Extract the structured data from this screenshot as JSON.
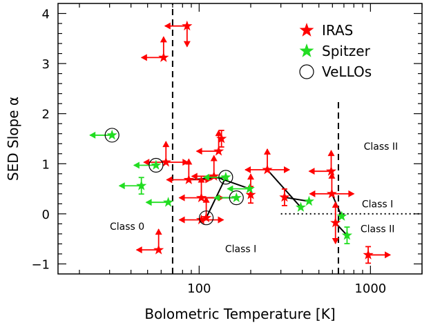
{
  "chart_data": {
    "type": "scatter",
    "xlabel": "Bolometric Temperature  [K]",
    "ylabel": "SED Slope   α",
    "xscale": "log",
    "xlim": [
      15,
      2000
    ],
    "ylim": [
      -1.2,
      4.2
    ],
    "x_ticks": [
      {
        "v": 100,
        "label": "100"
      },
      {
        "v": 1000,
        "label": "1000"
      }
    ],
    "y_ticks": [
      {
        "v": -1,
        "label": "−1"
      },
      {
        "v": 0,
        "label": "0"
      },
      {
        "v": 1,
        "label": "1"
      },
      {
        "v": 2,
        "label": "2"
      },
      {
        "v": 3,
        "label": "3"
      },
      {
        "v": 4,
        "label": "4"
      }
    ],
    "legend": {
      "placement": "top-right",
      "entries": [
        {
          "label": "IRAS",
          "marker": "star",
          "color": "#ff0000"
        },
        {
          "label": "Spitzer",
          "marker": "star",
          "color": "#22dd22"
        },
        {
          "label": "VeLLOs",
          "marker": "open-circle",
          "color": "#000000"
        }
      ]
    },
    "class_labels": [
      {
        "text": "Class 0",
        "x": 38,
        "y": -0.25
      },
      {
        "text": "Class I",
        "x": 175,
        "y": -0.7
      },
      {
        "text": "Class II",
        "x": 1150,
        "y": 1.35
      },
      {
        "text": "Class I",
        "x": 1100,
        "y": 0.2
      },
      {
        "text": "Class II",
        "x": 1100,
        "y": -0.3
      }
    ],
    "boundaries": [
      {
        "style": "dashed",
        "orientation": "vertical",
        "x": 70,
        "y": [
          -1.2,
          4.2
        ]
      },
      {
        "style": "dashed",
        "orientation": "vertical",
        "x": 650,
        "y": [
          -1.2,
          2.3
        ]
      },
      {
        "style": "dotted",
        "orientation": "horizontal",
        "y": 0,
        "x": [
          300,
          2000
        ]
      }
    ],
    "series": [
      {
        "name": "IRAS",
        "color": "#ff0000",
        "points": [
          {
            "x": 85,
            "y": 3.75,
            "arrows": [
              "down",
              "left"
            ]
          },
          {
            "x": 62,
            "y": 3.12,
            "arrows": [
              "up",
              "left"
            ]
          },
          {
            "x": 58,
            "y": -0.72,
            "arrows": [
              "up",
              "left"
            ]
          },
          {
            "x": 64,
            "y": 1.03,
            "arrows": [
              "up",
              "left",
              "right"
            ]
          },
          {
            "x": 87,
            "y": 0.68,
            "arrows": [
              "up",
              "left",
              "right"
            ]
          },
          {
            "x": 103,
            "y": 0.32,
            "arrows": [
              "up",
              "left",
              "right"
            ]
          },
          {
            "x": 103,
            "y": -0.12,
            "arrows": [
              "left",
              "right"
            ]
          },
          {
            "x": 110,
            "y": -0.08,
            "arrows": [
              "up"
            ]
          },
          {
            "x": 130,
            "y": 1.25,
            "arrows": [
              "up",
              "left"
            ]
          },
          {
            "x": 135,
            "y": 1.5,
            "errorbar": true
          },
          {
            "x": 122,
            "y": 0.75,
            "arrows": [
              "up",
              "left"
            ]
          },
          {
            "x": 200,
            "y": 0.38,
            "errorbar": true,
            "arrows": [
              "up"
            ]
          },
          {
            "x": 250,
            "y": 0.88,
            "arrows": [
              "up",
              "left",
              "right"
            ]
          },
          {
            "x": 315,
            "y": 0.33,
            "errorbar": true
          },
          {
            "x": 590,
            "y": 0.85,
            "arrows": [
              "up",
              "left"
            ]
          },
          {
            "x": 595,
            "y": 0.4,
            "arrows": [
              "up",
              "left",
              "right"
            ]
          },
          {
            "x": 625,
            "y": -0.18,
            "arrows": [
              "up",
              "down"
            ]
          },
          {
            "x": 970,
            "y": -0.82,
            "errorbar": true,
            "arrows": [
              "right"
            ]
          }
        ]
      },
      {
        "name": "Spitzer",
        "color": "#22dd22",
        "points": [
          {
            "x": 31,
            "y": 1.57,
            "arrows": [
              "left"
            ],
            "vello": true
          },
          {
            "x": 56,
            "y": 0.97,
            "arrows": [
              "left"
            ],
            "vello": true
          },
          {
            "x": 46,
            "y": 0.56,
            "errorbar": true,
            "arrows": [
              "left"
            ]
          },
          {
            "x": 66,
            "y": 0.23,
            "arrows": [
              "left"
            ]
          },
          {
            "x": 143,
            "y": 0.73,
            "arrows": [
              "left"
            ],
            "vello": true
          },
          {
            "x": 165,
            "y": 0.32,
            "arrows": [
              "left"
            ],
            "vello": true
          },
          {
            "x": 197,
            "y": 0.5,
            "arrows": [
              "left"
            ]
          },
          {
            "x": 392,
            "y": 0.13
          },
          {
            "x": 438,
            "y": 0.25
          },
          {
            "x": 680,
            "y": -0.05
          },
          {
            "x": 730,
            "y": -0.43,
            "errorbar": true
          }
        ]
      },
      {
        "name": "VeLLOs",
        "color": "#000000",
        "points": [
          {
            "x": 110,
            "y": -0.08
          }
        ]
      }
    ],
    "connections": [
      {
        "from": [
          87,
          0.68
        ],
        "to": [
          143,
          0.73
        ]
      },
      {
        "from": [
          110,
          -0.08
        ],
        "to": [
          143,
          0.73
        ]
      },
      {
        "from": [
          103,
          0.32
        ],
        "to": [
          165,
          0.32
        ]
      },
      {
        "from": [
          122,
          0.75
        ],
        "to": [
          197,
          0.5
        ]
      },
      {
        "from": [
          250,
          0.88
        ],
        "to": [
          392,
          0.13
        ]
      },
      {
        "from": [
          315,
          0.33
        ],
        "to": [
          438,
          0.25
        ]
      },
      {
        "from": [
          595,
          0.4
        ],
        "to": [
          680,
          -0.05
        ]
      },
      {
        "from": [
          625,
          -0.18
        ],
        "to": [
          730,
          -0.43
        ]
      }
    ]
  }
}
